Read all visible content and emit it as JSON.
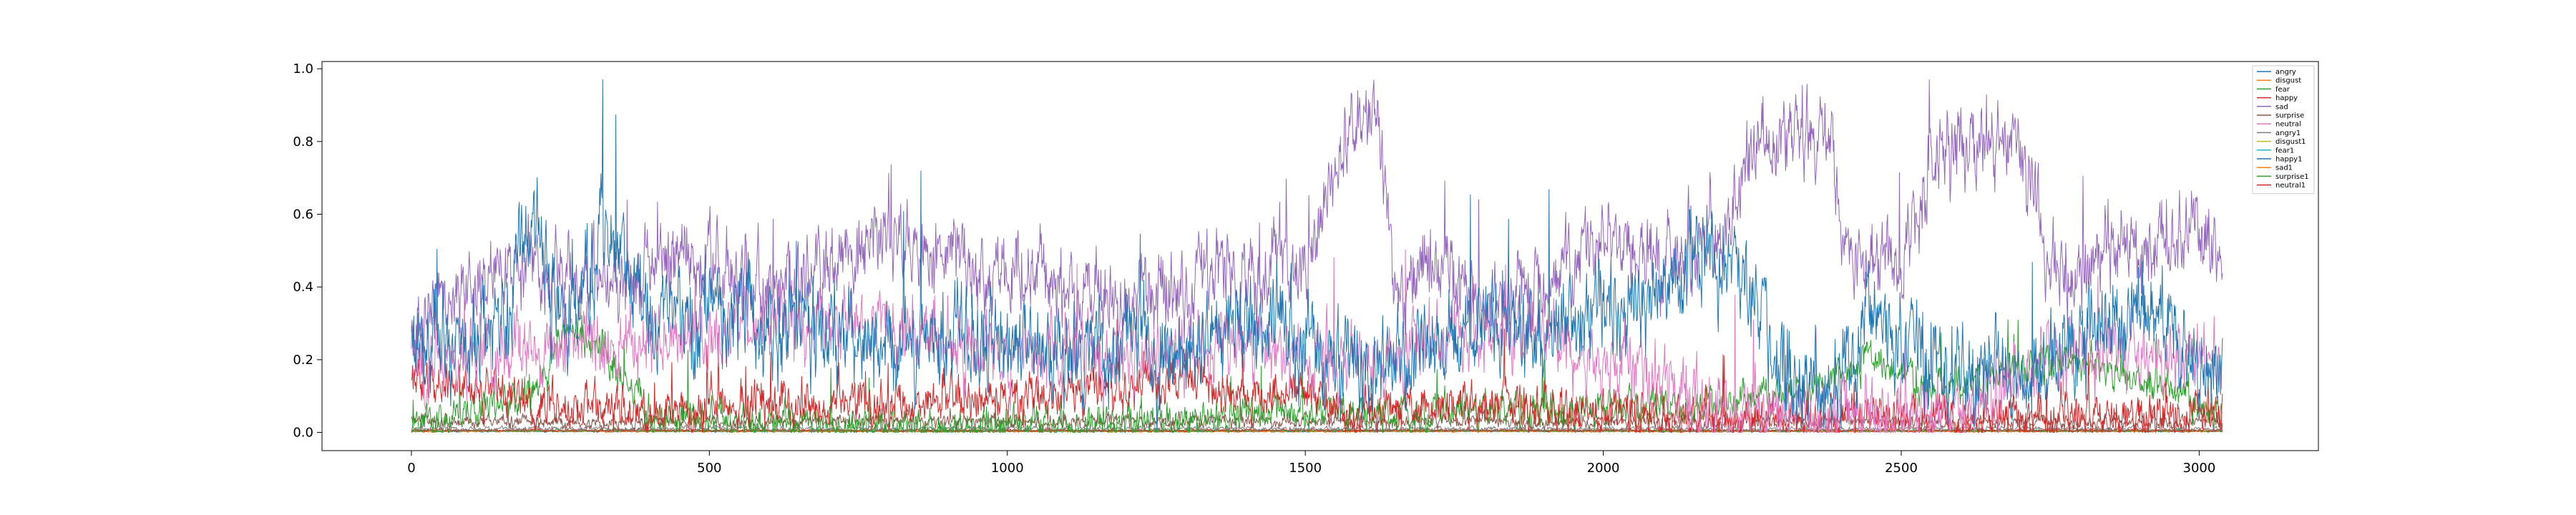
{
  "chart_data": {
    "type": "line",
    "title": "",
    "xlabel": "",
    "ylabel": "",
    "xlim": [
      -150,
      3200
    ],
    "ylim": [
      -0.05,
      1.02
    ],
    "x_ticks": [
      0,
      500,
      1000,
      1500,
      2000,
      2500,
      3000
    ],
    "y_ticks": [
      0.0,
      0.2,
      0.4,
      0.6,
      0.8,
      1.0
    ],
    "x_tick_labels": [
      "0",
      "500",
      "1000",
      "1500",
      "2000",
      "2500",
      "3000"
    ],
    "y_tick_labels": [
      "0.0",
      "0.2",
      "0.4",
      "0.6",
      "0.8",
      "1.0"
    ],
    "grid": false,
    "legend_position": "top-right",
    "n_points": 3040,
    "series": [
      {
        "name": "angry",
        "color": "#1f77b4",
        "profile": [
          [
            0,
            0.22
          ],
          [
            150,
            0.3
          ],
          [
            200,
            0.6
          ],
          [
            260,
            0.28
          ],
          [
            330,
            0.55
          ],
          [
            400,
            0.3
          ],
          [
            500,
            0.35
          ],
          [
            600,
            0.3
          ],
          [
            700,
            0.28
          ],
          [
            800,
            0.25
          ],
          [
            900,
            0.22
          ],
          [
            1000,
            0.25
          ],
          [
            1100,
            0.22
          ],
          [
            1200,
            0.25
          ],
          [
            1300,
            0.22
          ],
          [
            1400,
            0.35
          ],
          [
            1500,
            0.25
          ],
          [
            1600,
            0.15
          ],
          [
            1700,
            0.25
          ],
          [
            1800,
            0.3
          ],
          [
            1900,
            0.28
          ],
          [
            2000,
            0.35
          ],
          [
            2100,
            0.4
          ],
          [
            2200,
            0.5
          ],
          [
            2250,
            0.4
          ],
          [
            2300,
            0.15
          ],
          [
            2400,
            0.12
          ],
          [
            2450,
            0.35
          ],
          [
            2500,
            0.25
          ],
          [
            2600,
            0.18
          ],
          [
            2700,
            0.15
          ],
          [
            2800,
            0.25
          ],
          [
            2900,
            0.35
          ],
          [
            3000,
            0.2
          ],
          [
            3040,
            0.15
          ]
        ],
        "amplitude": 0.22
      },
      {
        "name": "disgust",
        "color": "#ff7f0e",
        "profile": [
          [
            0,
            0.003
          ],
          [
            3040,
            0.003
          ]
        ],
        "amplitude": 0.004
      },
      {
        "name": "fear",
        "color": "#2ca02c",
        "profile": [
          [
            0,
            0.02
          ],
          [
            200,
            0.1
          ],
          [
            260,
            0.3
          ],
          [
            330,
            0.2
          ],
          [
            400,
            0.05
          ],
          [
            600,
            0.02
          ],
          [
            1000,
            0.02
          ],
          [
            1500,
            0.05
          ],
          [
            2200,
            0.08
          ],
          [
            2350,
            0.12
          ],
          [
            2450,
            0.2
          ],
          [
            2550,
            0.12
          ],
          [
            2800,
            0.2
          ],
          [
            2900,
            0.15
          ],
          [
            3040,
            0.05
          ]
        ],
        "amplitude": 0.08
      },
      {
        "name": "happy",
        "color": "#d62728",
        "profile": [
          [
            0,
            0.15
          ],
          [
            100,
            0.12
          ],
          [
            200,
            0.08
          ],
          [
            400,
            0.06
          ],
          [
            600,
            0.08
          ],
          [
            800,
            0.08
          ],
          [
            1000,
            0.1
          ],
          [
            1200,
            0.12
          ],
          [
            1300,
            0.15
          ],
          [
            1400,
            0.1
          ],
          [
            1500,
            0.12
          ],
          [
            1600,
            0.04
          ],
          [
            1700,
            0.08
          ],
          [
            1900,
            0.08
          ],
          [
            2000,
            0.06
          ],
          [
            2200,
            0.04
          ],
          [
            2400,
            0.04
          ],
          [
            2600,
            0.04
          ],
          [
            2800,
            0.05
          ],
          [
            3040,
            0.05
          ]
        ],
        "amplitude": 0.1
      },
      {
        "name": "sad",
        "color": "#9467bd",
        "profile": [
          [
            0,
            0.3
          ],
          [
            100,
            0.4
          ],
          [
            200,
            0.45
          ],
          [
            300,
            0.4
          ],
          [
            400,
            0.45
          ],
          [
            500,
            0.5
          ],
          [
            600,
            0.4
          ],
          [
            700,
            0.45
          ],
          [
            800,
            0.55
          ],
          [
            900,
            0.45
          ],
          [
            1000,
            0.45
          ],
          [
            1100,
            0.4
          ],
          [
            1200,
            0.35
          ],
          [
            1300,
            0.4
          ],
          [
            1400,
            0.45
          ],
          [
            1500,
            0.45
          ],
          [
            1580,
            0.85
          ],
          [
            1620,
            0.88
          ],
          [
            1650,
            0.4
          ],
          [
            1700,
            0.45
          ],
          [
            1800,
            0.35
          ],
          [
            1900,
            0.4
          ],
          [
            2000,
            0.55
          ],
          [
            2100,
            0.45
          ],
          [
            2200,
            0.55
          ],
          [
            2260,
            0.8
          ],
          [
            2380,
            0.82
          ],
          [
            2400,
            0.5
          ],
          [
            2500,
            0.45
          ],
          [
            2560,
            0.78
          ],
          [
            2700,
            0.8
          ],
          [
            2750,
            0.45
          ],
          [
            2800,
            0.45
          ],
          [
            2900,
            0.55
          ],
          [
            3000,
            0.55
          ],
          [
            3040,
            0.5
          ]
        ],
        "amplitude": 0.18
      },
      {
        "name": "surprise",
        "color": "#8c564b",
        "profile": [
          [
            0,
            0.03
          ],
          [
            3040,
            0.03
          ]
        ],
        "amplitude": 0.03
      },
      {
        "name": "neutral",
        "color": "#e377c2",
        "profile": [
          [
            0,
            0.2
          ],
          [
            200,
            0.22
          ],
          [
            400,
            0.25
          ],
          [
            600,
            0.3
          ],
          [
            800,
            0.28
          ],
          [
            1000,
            0.22
          ],
          [
            1200,
            0.2
          ],
          [
            1400,
            0.25
          ],
          [
            1600,
            0.2
          ],
          [
            1800,
            0.28
          ],
          [
            2000,
            0.22
          ],
          [
            2200,
            0.05
          ],
          [
            2400,
            0.05
          ],
          [
            2600,
            0.05
          ],
          [
            2700,
            0.15
          ],
          [
            2800,
            0.25
          ],
          [
            3040,
            0.18
          ]
        ],
        "amplitude": 0.16
      },
      {
        "name": "angry1",
        "color": "#7f7f7f",
        "profile": [
          [
            0,
            0.01
          ],
          [
            3040,
            0.01
          ]
        ],
        "amplitude": 0.01
      },
      {
        "name": "disgust1",
        "color": "#bcbd22",
        "profile": [
          [
            0,
            0.003
          ],
          [
            3040,
            0.003
          ]
        ],
        "amplitude": 0.003
      },
      {
        "name": "fear1",
        "color": "#17becf",
        "profile": [
          [
            0,
            0.003
          ],
          [
            3040,
            0.003
          ]
        ],
        "amplitude": 0.003
      },
      {
        "name": "happy1",
        "color": "#1f77b4",
        "profile": [
          [
            0,
            0.004
          ],
          [
            3040,
            0.004
          ]
        ],
        "amplitude": 0.004
      },
      {
        "name": "sad1",
        "color": "#ff7f0e",
        "profile": [
          [
            0,
            0.004
          ],
          [
            3040,
            0.004
          ]
        ],
        "amplitude": 0.004
      },
      {
        "name": "surprise1",
        "color": "#2ca02c",
        "profile": [
          [
            0,
            0.005
          ],
          [
            3040,
            0.005
          ]
        ],
        "amplitude": 0.005
      },
      {
        "name": "neutral1",
        "color": "#d62728",
        "profile": [
          [
            0,
            0.006
          ],
          [
            3040,
            0.006
          ]
        ],
        "amplitude": 0.006
      }
    ]
  }
}
